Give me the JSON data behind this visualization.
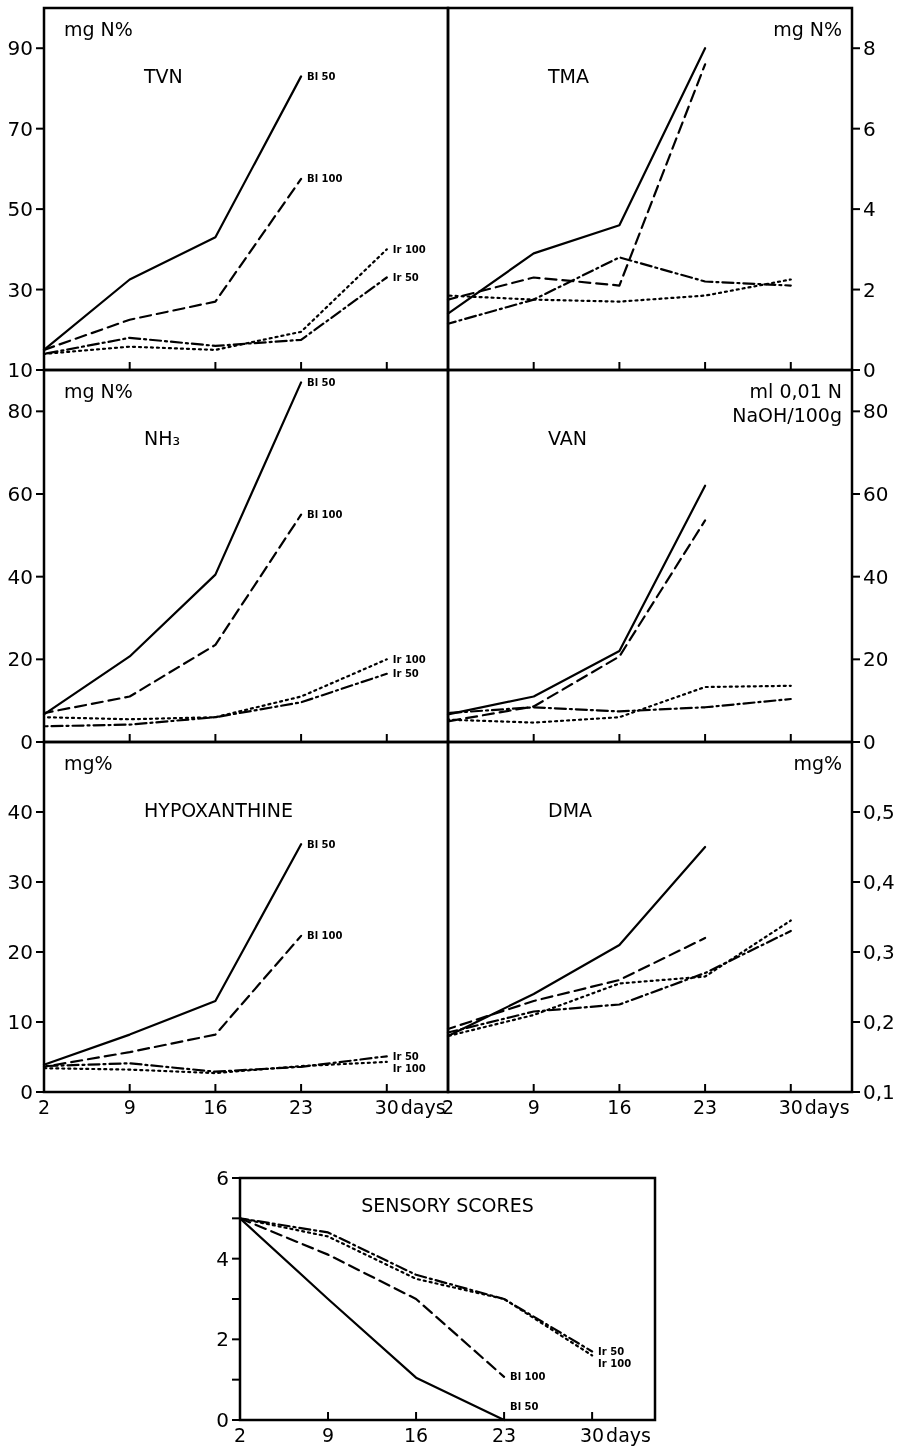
{
  "chart_data": [
    {
      "type": "line",
      "title": "TVN",
      "ylabel": "mg N%",
      "x": [
        2,
        9,
        16,
        23,
        30
      ],
      "xlim": [
        2,
        35
      ],
      "xticks": [
        2,
        9,
        16,
        23,
        30
      ],
      "ylim": [
        10,
        100
      ],
      "yticks": [
        10,
        30,
        50,
        70,
        90
      ],
      "tick_labels": "y",
      "series": [
        {
          "name": "Bl 50",
          "color": "#000000",
          "line_style": "solid",
          "values": [
            15,
            32.5,
            43,
            83,
            null
          ]
        },
        {
          "name": "Bl 100",
          "color": "#000000",
          "line_style": "dashed",
          "values": [
            15,
            22.5,
            27,
            57.5,
            null
          ]
        },
        {
          "name": "Ir 100",
          "color": "#000000",
          "line_style": "dotted",
          "values": [
            14,
            15.8,
            15,
            19.5,
            40
          ]
        },
        {
          "name": "Ir 50",
          "color": "#000000",
          "line_style": "dashdot",
          "values": [
            14,
            18,
            16,
            17.5,
            33
          ]
        }
      ]
    },
    {
      "type": "line",
      "title": "TMA",
      "ylabel": "mg N%",
      "x": [
        2,
        9,
        16,
        23,
        30
      ],
      "xlim": [
        2,
        35
      ],
      "xticks": [
        2,
        9,
        16,
        23,
        30
      ],
      "ylim": [
        0,
        9
      ],
      "yticks": [
        0,
        2,
        4,
        6,
        8
      ],
      "tick_labels": "y",
      "series": [
        {
          "color": "#000000",
          "line_style": "solid",
          "values": [
            1.4,
            2.9,
            3.6,
            8.0,
            null
          ]
        },
        {
          "color": "#000000",
          "line_style": "dashed",
          "values": [
            1.75,
            2.3,
            2.1,
            7.6,
            null
          ]
        },
        {
          "color": "#000000",
          "line_style": "dotted",
          "values": [
            1.85,
            1.75,
            1.7,
            1.85,
            2.25
          ]
        },
        {
          "color": "#000000",
          "line_style": "dashdot",
          "values": [
            1.15,
            1.75,
            2.8,
            2.2,
            2.1
          ]
        }
      ]
    },
    {
      "type": "line",
      "title": "NH₃",
      "ylabel": "mg N%",
      "x": [
        2,
        9,
        16,
        23,
        30
      ],
      "xlim": [
        2,
        35
      ],
      "xticks": [
        2,
        9,
        16,
        23,
        30
      ],
      "ylim": [
        0,
        90
      ],
      "yticks": [
        0,
        20,
        40,
        60,
        80
      ],
      "tick_labels": "y",
      "series": [
        {
          "name": "Bl 50",
          "color": "#000000",
          "line_style": "solid",
          "values": [
            6.7,
            20.7,
            40.5,
            87,
            null
          ]
        },
        {
          "name": "Bl 100",
          "color": "#000000",
          "line_style": "dashed",
          "values": [
            7,
            11,
            23.5,
            55,
            null
          ]
        },
        {
          "name": "Ir 100",
          "color": "#000000",
          "line_style": "dotted",
          "values": [
            6,
            5.5,
            6,
            11,
            20
          ]
        },
        {
          "name": "Ir 50",
          "color": "#000000",
          "line_style": "dashdot",
          "values": [
            3.8,
            4.2,
            6,
            9.6,
            16.5
          ]
        }
      ]
    },
    {
      "type": "line",
      "title": "VAN",
      "ylabel": "ml 0,01 N\nNaOH/100g",
      "x": [
        2,
        9,
        16,
        23,
        30
      ],
      "xlim": [
        2,
        35
      ],
      "xticks": [
        2,
        9,
        16,
        23,
        30
      ],
      "ylim": [
        0,
        90
      ],
      "yticks": [
        0,
        20,
        40,
        60,
        80
      ],
      "tick_labels": "y",
      "series": [
        {
          "color": "#000000",
          "line_style": "solid",
          "values": [
            6.7,
            11,
            22,
            62,
            null
          ]
        },
        {
          "color": "#000000",
          "line_style": "dashed",
          "values": [
            5,
            8.6,
            20.7,
            53.6,
            null
          ]
        },
        {
          "color": "#000000",
          "line_style": "dotted",
          "values": [
            5.4,
            4.7,
            6,
            13.3,
            13.6
          ]
        },
        {
          "color": "#000000",
          "line_style": "dashdot",
          "values": [
            7,
            8.4,
            7.4,
            8.4,
            10.4
          ]
        }
      ]
    },
    {
      "type": "line",
      "title": "HYPOXANTHINE",
      "ylabel": "mg%",
      "xlabel": "days",
      "x": [
        2,
        9,
        16,
        23,
        30
      ],
      "xlim": [
        2,
        35
      ],
      "xticks": [
        2,
        9,
        16,
        23,
        30
      ],
      "ylim": [
        0,
        50
      ],
      "yticks": [
        0,
        10,
        20,
        30,
        40
      ],
      "series": [
        {
          "name": "Bl 50",
          "color": "#000000",
          "line_style": "solid",
          "values": [
            3.9,
            8.2,
            13,
            35.4,
            null
          ]
        },
        {
          "name": "Bl 100",
          "color": "#000000",
          "line_style": "dashed",
          "values": [
            3.6,
            5.7,
            8.2,
            22.3,
            null
          ]
        },
        {
          "name": "Ir 50",
          "color": "#000000",
          "line_style": "dashdot",
          "values": [
            3.7,
            4.1,
            2.9,
            3.6,
            5.1
          ]
        },
        {
          "name": "Ir 100",
          "color": "#000000",
          "line_style": "dotted",
          "values": [
            3.4,
            3.2,
            2.7,
            3.7,
            4.3
          ]
        }
      ]
    },
    {
      "type": "line",
      "title": "DMA",
      "ylabel": "mg%",
      "xlabel": "days",
      "x": [
        2,
        9,
        16,
        23,
        30
      ],
      "xlim": [
        2,
        35
      ],
      "xticks": [
        2,
        9,
        16,
        23,
        30
      ],
      "ylim": [
        0.1,
        0.6
      ],
      "yticks": [
        {
          "value": 0.1,
          "label": "0,1"
        },
        {
          "value": 0.2,
          "label": "0,2"
        },
        {
          "value": 0.3,
          "label": "0,3"
        },
        {
          "value": 0.4,
          "label": "0,4"
        },
        {
          "value": 0.5,
          "label": "0,5"
        }
      ],
      "series": [
        {
          "color": "#000000",
          "line_style": "solid",
          "values": [
            0.18,
            0.24,
            0.31,
            0.45,
            null
          ]
        },
        {
          "color": "#000000",
          "line_style": "dashed",
          "values": [
            0.19,
            0.23,
            0.26,
            0.32,
            null
          ]
        },
        {
          "color": "#000000",
          "line_style": "dashdot",
          "values": [
            0.185,
            0.215,
            0.225,
            0.27,
            0.33
          ]
        },
        {
          "color": "#000000",
          "line_style": "dotted",
          "values": [
            0.18,
            0.21,
            0.255,
            0.265,
            0.345
          ]
        }
      ]
    },
    {
      "type": "line",
      "title": "SENSORY SCORES",
      "xlabel": "days",
      "x": [
        2,
        9,
        16,
        23,
        30
      ],
      "xlim": [
        2,
        35
      ],
      "xticks": [
        2,
        9,
        16,
        23,
        30
      ],
      "ylim": [
        0,
        6
      ],
      "yticks": [
        0,
        {
          "value": 1,
          "label": null
        },
        2,
        {
          "value": 3,
          "label": null
        },
        4,
        {
          "value": 5,
          "label": null
        },
        6
      ],
      "series": [
        {
          "name": "Bl 50",
          "color": "#000000",
          "line_style": "solid",
          "values": [
            5,
            3.0,
            1.05,
            0,
            null
          ]
        },
        {
          "name": "Bl 100",
          "color": "#000000",
          "line_style": "dashed",
          "values": [
            5,
            4.1,
            3.0,
            1.07,
            null
          ]
        },
        {
          "name": "Ir 50",
          "color": "#000000",
          "line_style": "dashdot",
          "values": [
            5,
            4.65,
            3.6,
            3.0,
            1.7
          ]
        },
        {
          "name": "Ir 100",
          "color": "#000000",
          "line_style": "dotted",
          "values": [
            5,
            4.55,
            3.5,
            3.0,
            1.6
          ]
        }
      ]
    }
  ]
}
